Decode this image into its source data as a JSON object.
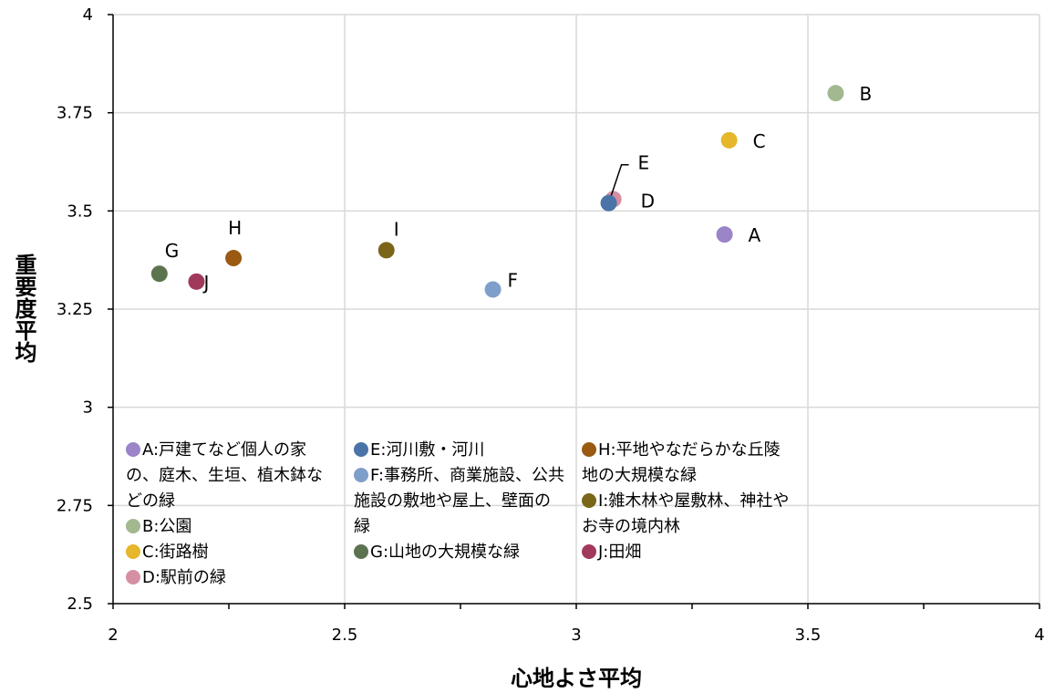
{
  "chart_data": {
    "type": "scatter",
    "xlabel": "心地よさ平均",
    "ylabel": "重要度平均",
    "xlim": [
      2,
      4
    ],
    "ylim": [
      2.5,
      4
    ],
    "x_ticks": [
      "2",
      "2.5",
      "3",
      "3.5",
      "4"
    ],
    "y_ticks": [
      "2.5",
      "2.75",
      "3",
      "3.25",
      "3.5",
      "3.75",
      "4"
    ],
    "grid": true,
    "points": [
      {
        "label": "A",
        "x": 3.32,
        "y": 3.44,
        "color": "#9b84c7"
      },
      {
        "label": "B",
        "x": 3.56,
        "y": 3.8,
        "color": "#a2b98f"
      },
      {
        "label": "C",
        "x": 3.33,
        "y": 3.68,
        "color": "#e6b62b"
      },
      {
        "label": "D",
        "x": 3.08,
        "y": 3.53,
        "color": "#d48fa3"
      },
      {
        "label": "E",
        "x": 3.07,
        "y": 3.52,
        "color": "#4a74a8"
      },
      {
        "label": "F",
        "x": 2.82,
        "y": 3.3,
        "color": "#7f9fcb"
      },
      {
        "label": "G",
        "x": 2.1,
        "y": 3.34,
        "color": "#5c7350"
      },
      {
        "label": "H",
        "x": 2.26,
        "y": 3.38,
        "color": "#9a5a12"
      },
      {
        "label": "I",
        "x": 2.59,
        "y": 3.4,
        "color": "#7b6518"
      },
      {
        "label": "J",
        "x": 2.18,
        "y": 3.32,
        "color": "#a0395a"
      }
    ]
  },
  "legend": {
    "columns": [
      [
        {
          "text": "A:戸建てなど個人の家の、庭木、生垣、植木鉢などの緑",
          "color": "#9b84c7"
        },
        {
          "text": "B:公園",
          "color": "#a2b98f"
        },
        {
          "text": "C:街路樹",
          "color": "#e6b62b"
        },
        {
          "text": "D:駅前の緑",
          "color": "#d48fa3"
        }
      ],
      [
        {
          "text": "E:河川敷・河川",
          "color": "#4a74a8"
        },
        {
          "text": "F:事務所、商業施設、公共施設の敷地や屋上、壁面の緑",
          "color": "#7f9fcb"
        },
        {
          "text": "G:山地の大規模な緑",
          "color": "#5c7350"
        }
      ],
      [
        {
          "text": "H:平地やなだらかな丘陵地の大規模な緑",
          "color": "#9a5a12"
        },
        {
          "text": "I:雑木林や屋敷林、神社やお寺の境内林",
          "color": "#7b6518"
        },
        {
          "text": "J:田畑",
          "color": "#a0395a"
        }
      ]
    ]
  }
}
